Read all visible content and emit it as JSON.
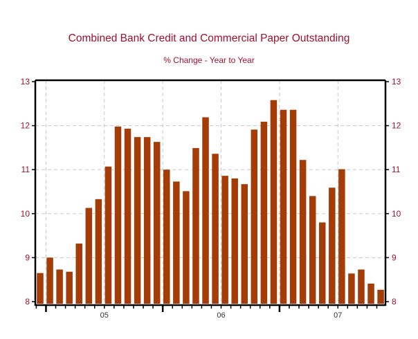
{
  "chart_data": {
    "type": "bar",
    "title": "Combined Bank Credit and Commercial Paper Outstanding",
    "subtitle": "% Change - Year to Year",
    "xlabel": "",
    "ylabel": "",
    "ylim": [
      8,
      13
    ],
    "yticks": [
      8,
      9,
      10,
      11,
      12,
      13
    ],
    "xtick_labels": [
      {
        "label": "05",
        "index": 6.6
      },
      {
        "label": "06",
        "index": 18.6
      },
      {
        "label": "07",
        "index": 30.6
      }
    ],
    "year_boundaries": [
      0.6,
      12.6,
      24.6
    ],
    "grid": true,
    "values": [
      8.65,
      9.0,
      8.73,
      8.68,
      9.32,
      10.13,
      10.33,
      11.07,
      11.98,
      11.93,
      11.74,
      11.74,
      11.63,
      11.0,
      10.73,
      10.51,
      11.49,
      12.19,
      11.36,
      10.86,
      10.8,
      10.67,
      11.91,
      12.09,
      12.58,
      12.36,
      12.36,
      11.22,
      10.4,
      9.8,
      10.59,
      11.01,
      8.64,
      8.73,
      8.41,
      8.27
    ]
  },
  "colors": {
    "bar": "#a33c06",
    "title": "#a0102a",
    "tick_label": "#a0102a",
    "grid": "#c8c8c8"
  }
}
